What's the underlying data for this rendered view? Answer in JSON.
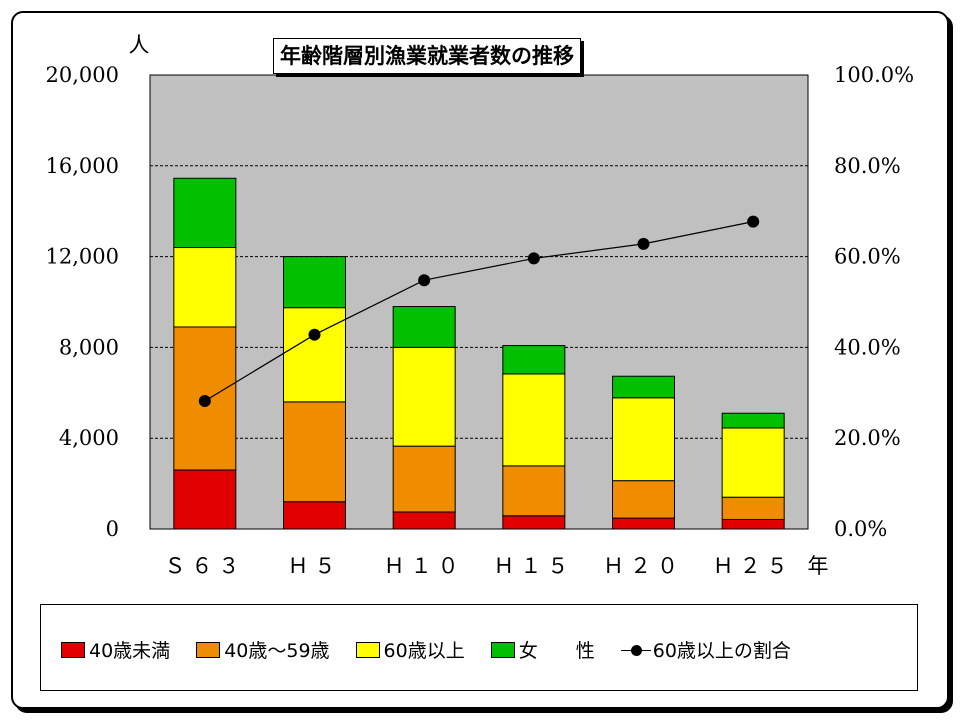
{
  "chart_data": {
    "type": "bar",
    "stacked": true,
    "title": "年齢階層別漁業就業者数の推移",
    "y_unit": "人",
    "x_unit": "年",
    "categories": [
      "Ｓ６３",
      "Ｈ５",
      "Ｈ１０",
      "Ｈ１５",
      "Ｈ２０",
      "Ｈ２５"
    ],
    "ylim": [
      0,
      20000
    ],
    "yticks": [
      "0",
      "4,000",
      "8,000",
      "12,000",
      "16,000",
      "20,000"
    ],
    "y2lim": [
      0,
      100
    ],
    "y2ticks": [
      "0.0%",
      "20.0%",
      "40.0%",
      "60.0%",
      "80.0%",
      "100.0%"
    ],
    "series": [
      {
        "name": "40歳未満",
        "color": "#e00000",
        "values": [
          2600,
          1200,
          750,
          580,
          480,
          420
        ]
      },
      {
        "name": "40歳～59歳",
        "color": "#f08c00",
        "values": [
          6300,
          4400,
          2900,
          2200,
          1650,
          980
        ]
      },
      {
        "name": "60歳以上",
        "color": "#ffff00",
        "values": [
          3500,
          4150,
          4350,
          4050,
          3650,
          3050
        ]
      },
      {
        "name": "女　　性",
        "color": "#00c000",
        "values": [
          3050,
          2250,
          1800,
          1250,
          950,
          650
        ]
      }
    ],
    "line_series": {
      "name": "60歳以上の割合",
      "axis": "right",
      "values": [
        28.2,
        42.8,
        54.8,
        59.6,
        62.8,
        67.7
      ]
    },
    "grid": true,
    "legend": "bottom"
  }
}
